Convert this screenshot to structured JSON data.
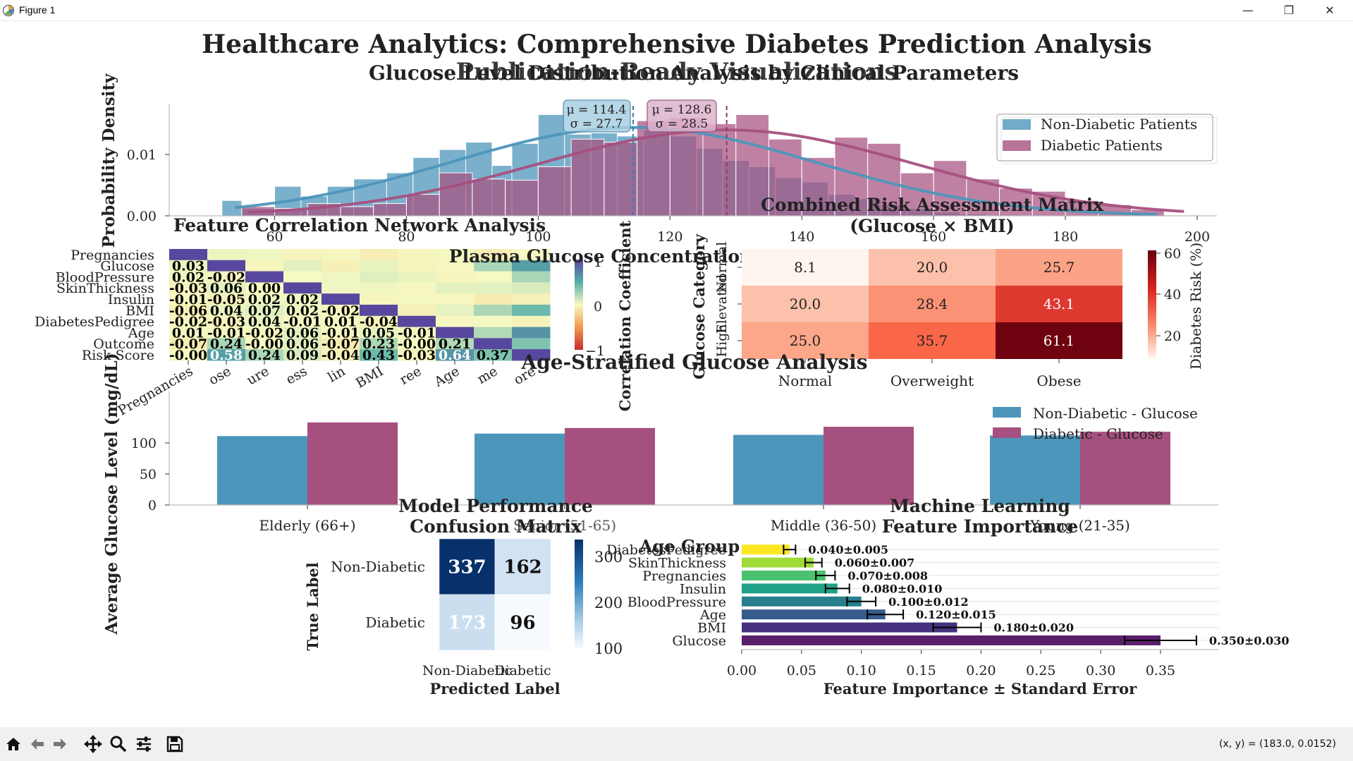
{
  "window": {
    "title": "Figure 1",
    "minimize": "—",
    "maximize": "❐",
    "close": "✕"
  },
  "toolbar": {
    "coords": "(x, y) = (183.0, 0.0152)"
  },
  "figure": {
    "suptitle": "Healthcare Analytics: Comprehensive Diabetes Prediction Analysis",
    "subtitle": "Publication-Ready Visualizations"
  },
  "colors": {
    "non_diabetic": "#4d96bb",
    "diabetic": "#a6507f"
  },
  "chart_data": [
    {
      "type": "histogram",
      "title": "Glucose Level Distribution Analysis by Clinical Parameters",
      "ylabel": "Probability Density",
      "xlabel": "Plasma Glucose Concentration",
      "xlim": [
        44,
        203
      ],
      "ylim": [
        0,
        0.0175
      ],
      "xticks": [
        60,
        80,
        100,
        120,
        140,
        160,
        180,
        200
      ],
      "yticks": [
        "0.00",
        "0.01"
      ],
      "legend": {
        "position": "top-right",
        "entries": [
          "Non-Diabetic Patients",
          "Diabetic Patients"
        ]
      },
      "series": [
        {
          "name": "Non-Diabetic Patients",
          "mean": 114.4,
          "std": 27.7,
          "label": "μ = 114.4\nσ = 27.7",
          "bins": [
            [
              52,
              55,
              0.0025
            ],
            [
              55,
              60,
              0.0012
            ],
            [
              60,
              64,
              0.0048
            ],
            [
              64,
              68,
              0.0032
            ],
            [
              68,
              72,
              0.0048
            ],
            [
              72,
              77,
              0.006
            ],
            [
              77,
              81,
              0.007
            ],
            [
              81,
              85,
              0.0095
            ],
            [
              85,
              89,
              0.0108
            ],
            [
              89,
              93,
              0.012
            ],
            [
              93,
              96,
              0.0082
            ],
            [
              96,
              100,
              0.0118
            ],
            [
              100,
              104,
              0.0165
            ],
            [
              104,
              108,
              0.0133
            ],
            [
              108,
              112,
              0.0135
            ],
            [
              112,
              116,
              0.013
            ],
            [
              116,
              120,
              0.014
            ],
            [
              120,
              124,
              0.013
            ],
            [
              124,
              128,
              0.011
            ],
            [
              128,
              132,
              0.009
            ],
            [
              132,
              136,
              0.008
            ],
            [
              136,
              140,
              0.0062
            ],
            [
              140,
              144,
              0.0055
            ],
            [
              144,
              148,
              0.0035
            ],
            [
              148,
              152,
              0.0028
            ],
            [
              152,
              156,
              0.0018
            ],
            [
              156,
              160,
              0.0012
            ],
            [
              160,
              164,
              0.0006
            ],
            [
              164,
              168,
              0.0003
            ]
          ]
        },
        {
          "name": "Diabetic Patients",
          "mean": 128.6,
          "std": 28.5,
          "label": "μ = 128.6\nσ = 28.5",
          "bins": [
            [
              55,
              60,
              0.0015
            ],
            [
              60,
              65,
              0.0012
            ],
            [
              65,
              70,
              0.002
            ],
            [
              70,
              75,
              0.0015
            ],
            [
              75,
              80,
              0.002
            ],
            [
              80,
              85,
              0.0035
            ],
            [
              85,
              90,
              0.007
            ],
            [
              90,
              95,
              0.006
            ],
            [
              95,
              100,
              0.0058
            ],
            [
              100,
              105,
              0.008
            ],
            [
              105,
              110,
              0.0125
            ],
            [
              110,
              115,
              0.012
            ],
            [
              115,
              120,
              0.0155
            ],
            [
              120,
              125,
              0.016
            ],
            [
              125,
              130,
              0.015
            ],
            [
              130,
              135,
              0.0165
            ],
            [
              135,
              140,
              0.0125
            ],
            [
              140,
              145,
              0.0095
            ],
            [
              145,
              150,
              0.0128
            ],
            [
              150,
              155,
              0.0118
            ],
            [
              155,
              160,
              0.007
            ],
            [
              160,
              165,
              0.009
            ],
            [
              165,
              170,
              0.006
            ],
            [
              170,
              175,
              0.0045
            ],
            [
              175,
              180,
              0.004
            ],
            [
              180,
              185,
              0.0025
            ],
            [
              185,
              190,
              0.0018
            ],
            [
              190,
              195,
              0.001
            ]
          ]
        }
      ]
    },
    {
      "type": "heatmap",
      "title": "Feature Correlation Network Analysis",
      "colorbar_label": "Correlation Coefficient",
      "colorbar_ticks": [
        "1",
        "0",
        "−1"
      ],
      "row_labels": [
        "Pregnancies",
        "Glucose",
        "BloodPressure",
        "SkinThickness",
        "Insulin",
        "BMI",
        "DiabetesPedigree",
        "Age",
        "Outcome",
        "Risk Score"
      ],
      "col_labels": [
        "Pregnancies",
        "Glucose",
        "BloodPressure",
        "SkinThickness",
        "Insulin",
        "BMI",
        "DiabetesPedigree",
        "Age",
        "Outcome",
        "Risk Score"
      ],
      "col_tick_labels": [
        "Pregnancies",
        "ose",
        "ure",
        "ess",
        "lin",
        "BMI",
        "ree",
        "Age",
        "me",
        "ore"
      ],
      "values": [
        [
          1,
          0,
          0,
          0,
          0,
          0,
          0,
          0,
          0,
          0
        ],
        [
          0.03,
          1,
          0,
          0,
          0,
          0,
          0,
          0,
          0,
          0
        ],
        [
          0.02,
          -0.02,
          1,
          0,
          0,
          0,
          0,
          0,
          0,
          0
        ],
        [
          -0.03,
          0.06,
          0.0,
          1,
          0,
          0,
          0,
          0,
          0,
          0
        ],
        [
          -0.01,
          -0.05,
          0.02,
          0.02,
          1,
          0,
          0,
          0,
          0,
          0
        ],
        [
          -0.06,
          0.04,
          0.07,
          0.02,
          -0.02,
          1,
          0,
          0,
          0,
          0
        ],
        [
          -0.02,
          -0.03,
          0.04,
          -0.01,
          0.01,
          -0.04,
          1,
          0,
          0,
          0
        ],
        [
          0.01,
          -0.01,
          -0.02,
          0.06,
          -0.01,
          0.05,
          -0.01,
          1,
          0,
          0
        ],
        [
          -0.07,
          0.24,
          -0.0,
          0.06,
          -0.07,
          0.23,
          -0.0,
          0.21,
          1,
          0
        ],
        [
          -0.0,
          0.58,
          0.24,
          0.09,
          -0.04,
          0.43,
          -0.03,
          0.64,
          0.37,
          1
        ]
      ],
      "labels": [
        [
          "",
          "",
          "",
          "",
          "",
          "",
          "",
          "",
          "",
          ""
        ],
        [
          "0.03",
          "",
          "",
          "",
          "",
          "",
          "",
          "",
          "",
          ""
        ],
        [
          "0.02",
          "-0.02",
          "",
          "",
          "",
          "",
          "",
          "",
          "",
          ""
        ],
        [
          "-0.03",
          "0.06",
          "0.00",
          "",
          "",
          "",
          "",
          "",
          "",
          ""
        ],
        [
          "-0.01",
          "-0.05",
          "0.02",
          "0.02",
          "",
          "",
          "",
          "",
          "",
          ""
        ],
        [
          "-0.06",
          "0.04",
          "0.07",
          "0.02",
          "-0.02",
          "",
          "",
          "",
          "",
          ""
        ],
        [
          "-0.02",
          "-0.03",
          "0.04",
          "-0.01",
          "0.01",
          "-0.04",
          "",
          "",
          "",
          ""
        ],
        [
          "0.01",
          "-0.01",
          "-0.02",
          "0.06",
          "-0.01",
          "0.05",
          "-0.01",
          "",
          "",
          ""
        ],
        [
          "-0.07",
          "0.24",
          "-0.00",
          "0.06",
          "-0.07",
          "0.23",
          "-0.00",
          "0.21",
          "",
          ""
        ],
        [
          "-0.00",
          "0.58",
          "0.24",
          "0.09",
          "-0.04",
          "0.43",
          "-0.03",
          "0.64",
          "0.37",
          ""
        ]
      ]
    },
    {
      "type": "heatmap",
      "title": "Combined Risk Assessment Matrix\n(Glucose × BMI)",
      "ylabel": "Glucose Category",
      "row_labels": [
        "Normal",
        "Elevated",
        "High"
      ],
      "col_labels": [
        "Normal",
        "Overweight",
        "Obese"
      ],
      "values": [
        [
          8.1,
          20.0,
          25.7
        ],
        [
          20.0,
          28.4,
          43.1
        ],
        [
          25.0,
          35.7,
          61.1
        ]
      ],
      "labels": [
        [
          "8.1",
          "20.0",
          "25.7"
        ],
        [
          "20.0",
          "28.4",
          "43.1"
        ],
        [
          "25.0",
          "35.7",
          "61.1"
        ]
      ],
      "colorbar_label": "Diabetes Risk (%)",
      "colorbar_ticks": [
        "60",
        "40",
        "20"
      ],
      "vmin": 8,
      "vmax": 62
    },
    {
      "type": "bar",
      "title": "Age-Stratified Glucose Analysis",
      "ylabel": "Average Glucose Level (mg/dL)",
      "xlabel": "Age Group",
      "categories": [
        "Elderly (66+)",
        "Senior (51-65)",
        "Middle (36-50)",
        "Young (21-35)"
      ],
      "yticks": [
        "0",
        "50",
        "100"
      ],
      "ylim": [
        0,
        133
      ],
      "series": [
        {
          "name": "Non-Diabetic - Glucose",
          "values": [
            111,
            115,
            113,
            112
          ]
        },
        {
          "name": "Diabetic - Glucose",
          "values": [
            133,
            124,
            126,
            118
          ]
        }
      ]
    },
    {
      "type": "heatmap",
      "title": "Model Performance\nConfusion Matrix",
      "xlabel": "Predicted Label",
      "ylabel": "True Label",
      "row_labels": [
        "Non-Diabetic",
        "Diabetic"
      ],
      "col_labels": [
        "Non-Diabetic",
        "Diabetic"
      ],
      "values": [
        [
          337,
          162
        ],
        [
          173,
          96
        ]
      ],
      "labels": [
        [
          "337",
          "162"
        ],
        [
          "173",
          "96"
        ]
      ],
      "colorbar_ticks": [
        "300",
        "200",
        "100"
      ],
      "vmin": 96,
      "vmax": 337
    },
    {
      "type": "bar",
      "orientation": "horizontal",
      "title": "Machine Learning\nFeature Importance",
      "xlabel": "Feature Importance ± Standard Error",
      "categories": [
        "DiabetesPedigree",
        "SkinThickness",
        "Pregnancies",
        "Insulin",
        "BloodPressure",
        "Age",
        "BMI",
        "Glucose"
      ],
      "values": [
        0.04,
        0.06,
        0.07,
        0.08,
        0.1,
        0.12,
        0.18,
        0.35
      ],
      "errors": [
        0.005,
        0.007,
        0.008,
        0.01,
        0.012,
        0.015,
        0.02,
        0.03
      ],
      "labels": [
        "0.040±0.005",
        "0.060±0.007",
        "0.070±0.008",
        "0.080±0.010",
        "0.100±0.012",
        "0.120±0.015",
        "0.180±0.020",
        "0.350±0.030"
      ],
      "bar_colors": [
        "#fde725",
        "#a0da39",
        "#4ac16d",
        "#1fa187",
        "#277f8e",
        "#365c8d",
        "#46327e",
        "#5a1f6a"
      ],
      "xticks": [
        "0.00",
        "0.05",
        "0.10",
        "0.15",
        "0.20",
        "0.25",
        "0.30",
        "0.35"
      ],
      "xlim": [
        0,
        0.4
      ]
    }
  ]
}
